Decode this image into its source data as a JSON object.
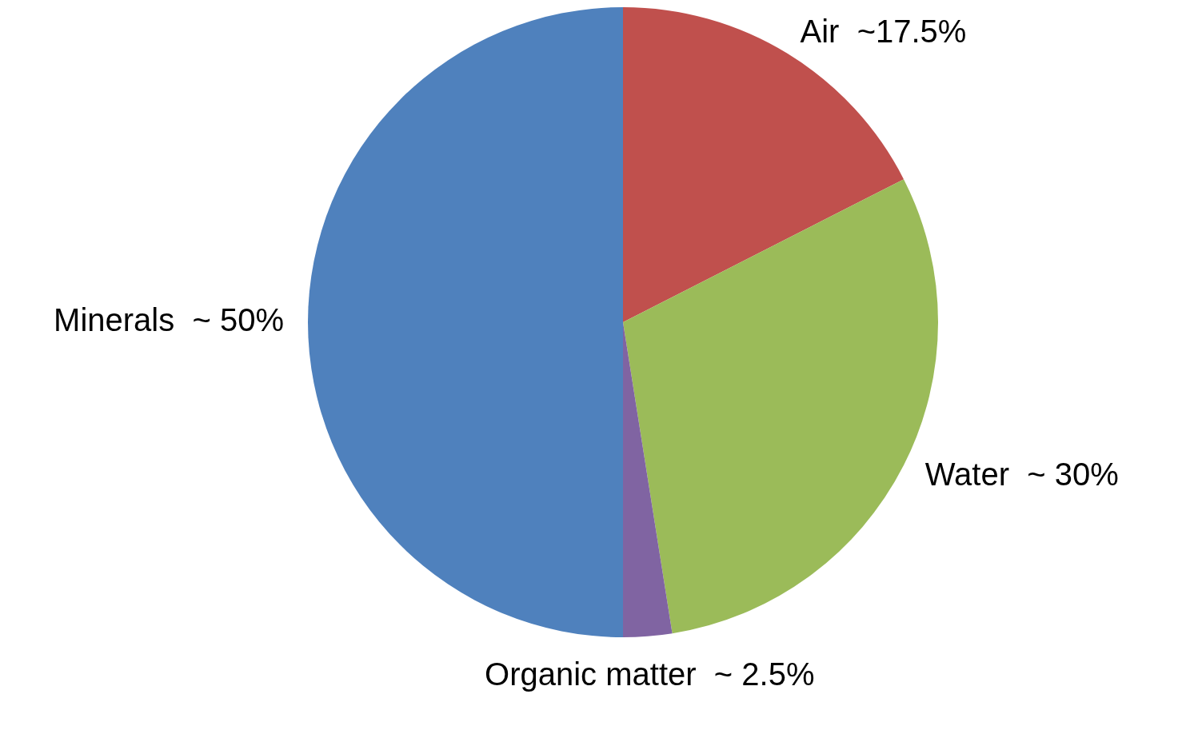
{
  "chart_data": {
    "type": "pie",
    "categories": [
      "Air",
      "Water",
      "Organic matter",
      "Minerals"
    ],
    "values": [
      17.5,
      30,
      2.5,
      50
    ],
    "colors": [
      "#c0504d",
      "#9bbb59",
      "#8064a2",
      "#4f81bd"
    ],
    "value_labels": [
      "~17.5%",
      "~ 30%",
      "~ 2.5%",
      "~ 50%"
    ],
    "legend": false
  }
}
